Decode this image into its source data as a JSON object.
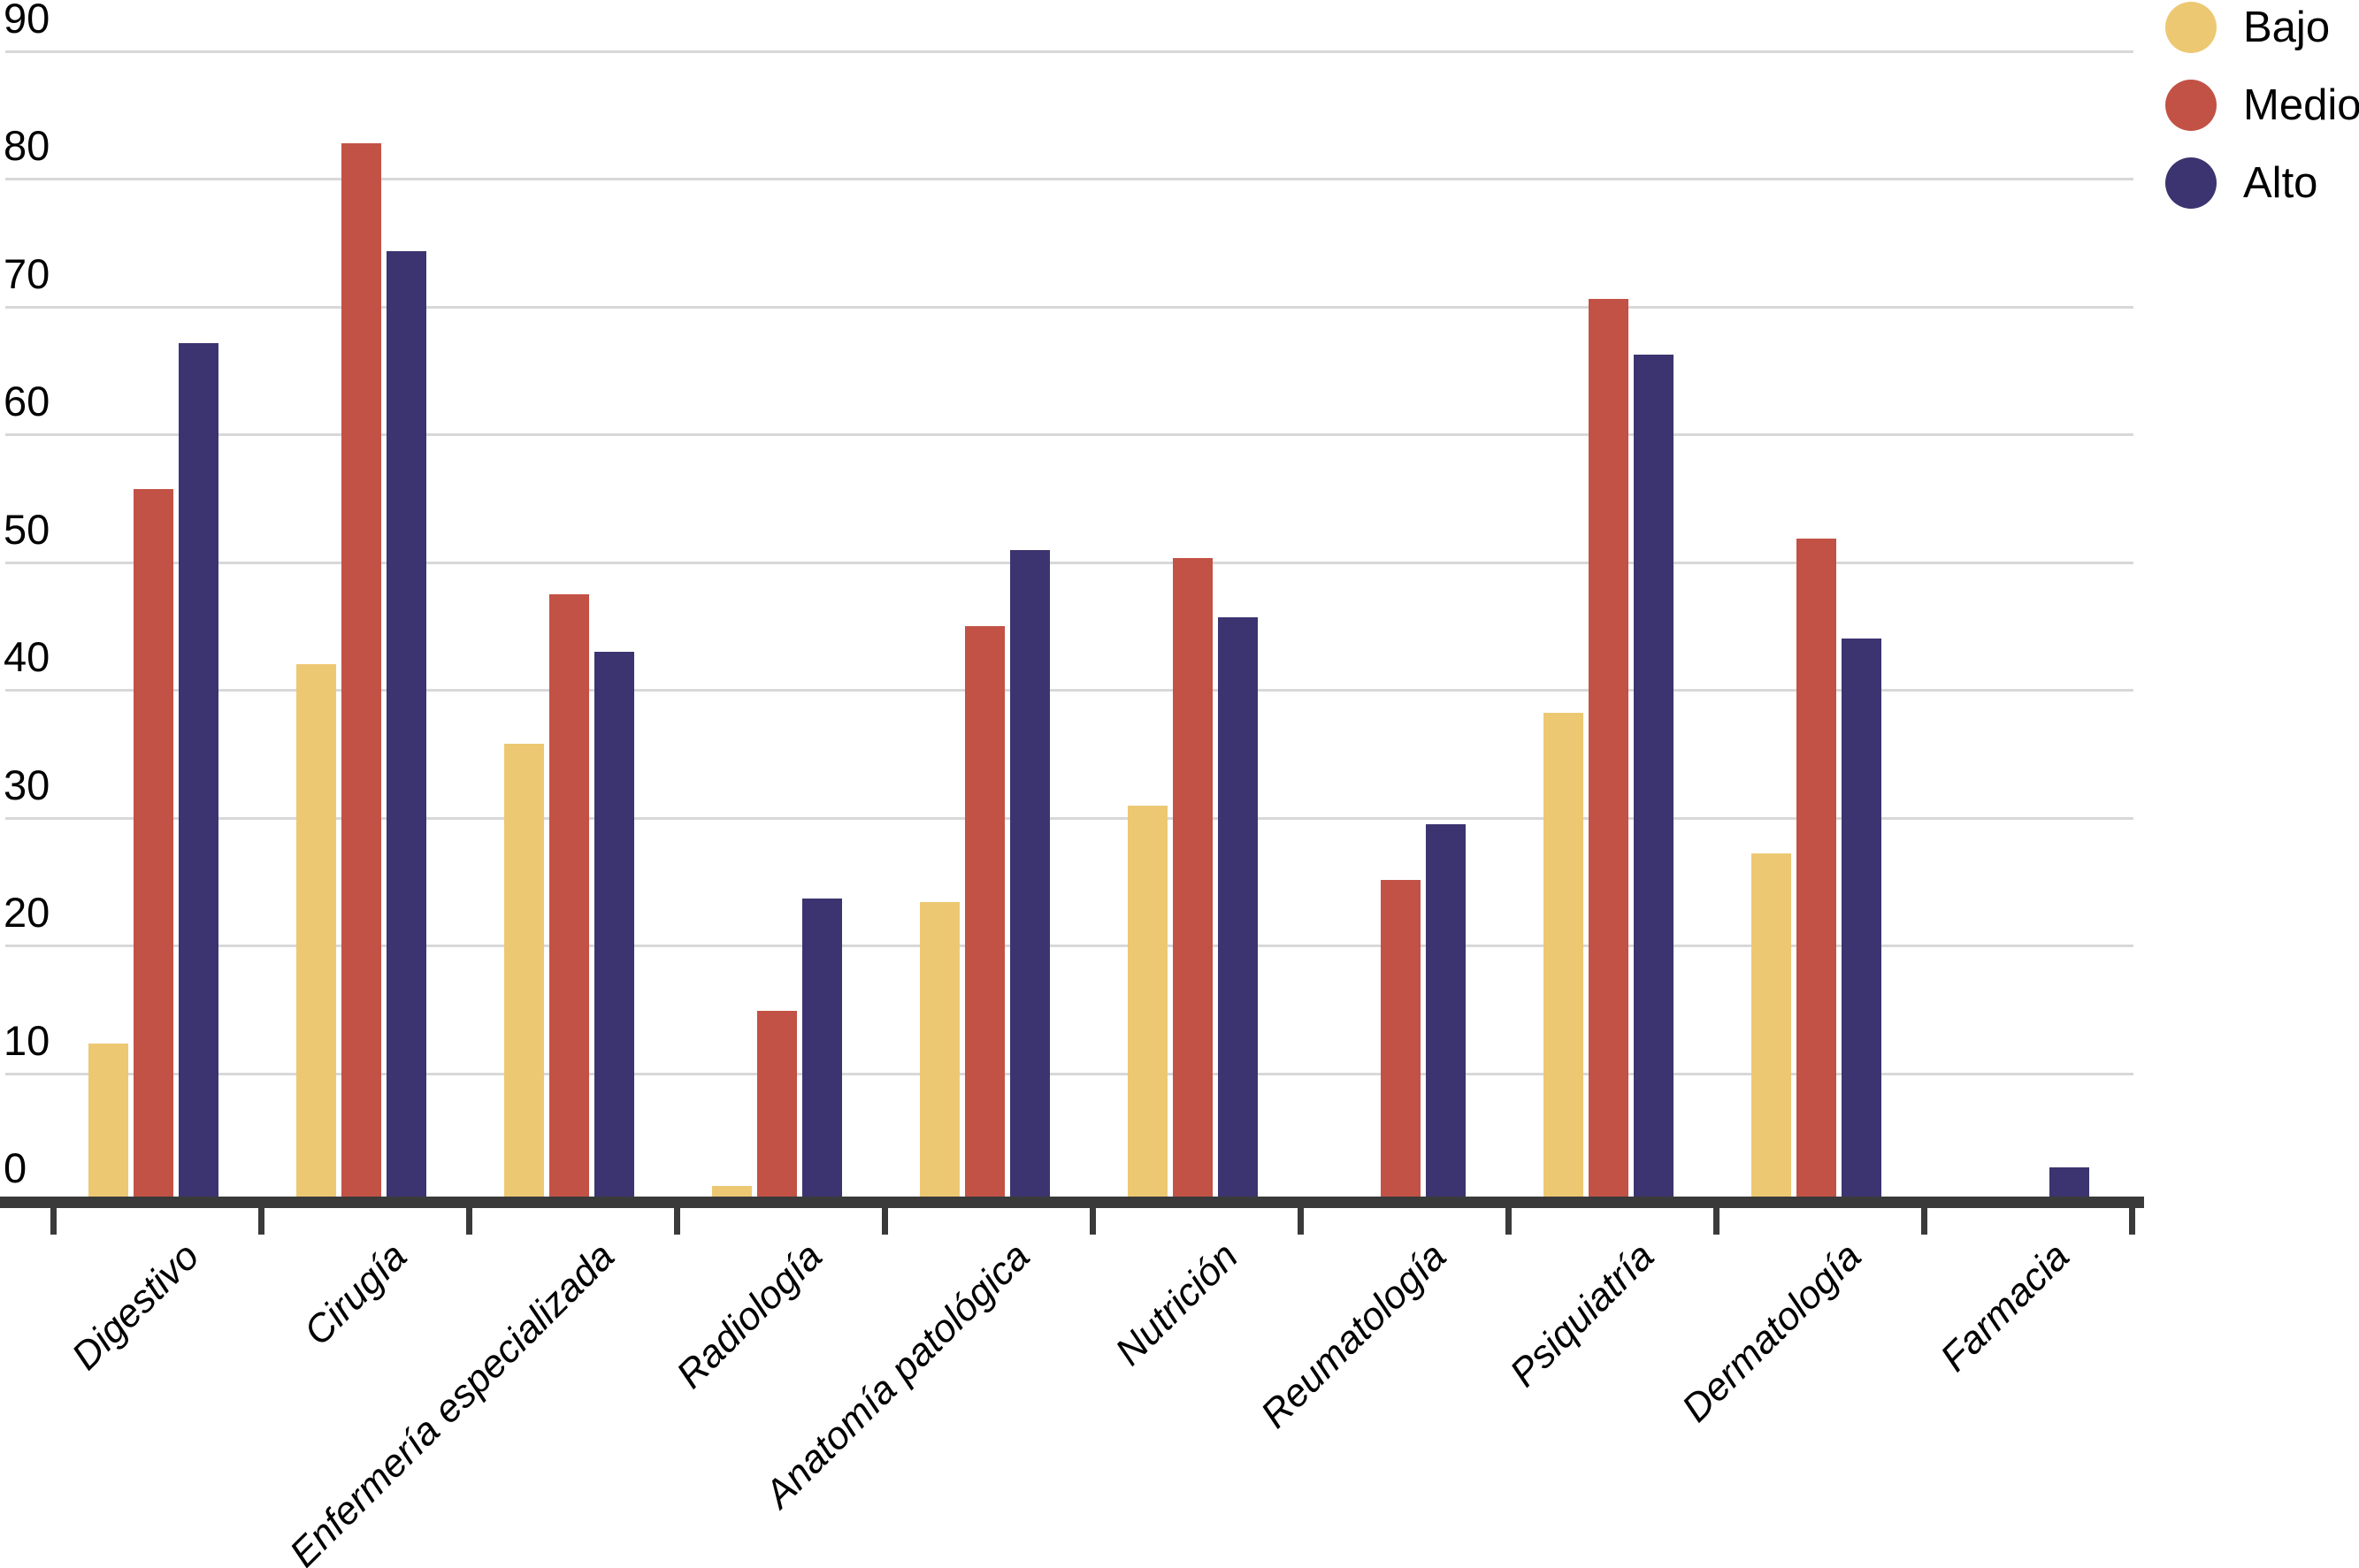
{
  "chart_data": {
    "type": "bar",
    "title": "",
    "xlabel": "",
    "ylabel": "",
    "categories": [
      "Digestivo",
      "Cirugía",
      "Enfermería especializada",
      "Radiología",
      "Anatomía patológica",
      "Nutrición",
      "Reumatología",
      "Psiquiatría",
      "Dermatología",
      "Farmacia"
    ],
    "series": [
      {
        "name": "Bajo",
        "color": "#EDC873",
        "values": [
          12.3,
          42.0,
          35.8,
          1.2,
          23.4,
          30.9,
          0,
          38.2,
          27.2,
          0
        ]
      },
      {
        "name": "Medio",
        "color": "#C25245",
        "values": [
          55.7,
          82.8,
          47.5,
          14.9,
          45.0,
          50.3,
          25.1,
          70.6,
          51.8,
          0
        ]
      },
      {
        "name": "Alto",
        "color": "#3B3470",
        "values": [
          67.1,
          74.3,
          43.0,
          23.7,
          50.9,
          45.7,
          29.5,
          66.2,
          44.0,
          2.6
        ]
      }
    ],
    "ylim": [
      0,
      90
    ],
    "yticks": [
      0,
      10,
      20,
      30,
      40,
      50,
      60,
      70,
      80,
      90
    ],
    "grid": "horizontal",
    "legend_position": "top-right",
    "legend_labels": [
      "Bajo",
      "Medio",
      "Alto"
    ]
  },
  "colors": {
    "background": "#FFFFFF",
    "gridline": "#D8D8D8",
    "axis": "#3A3A3A",
    "text": "#000000"
  }
}
